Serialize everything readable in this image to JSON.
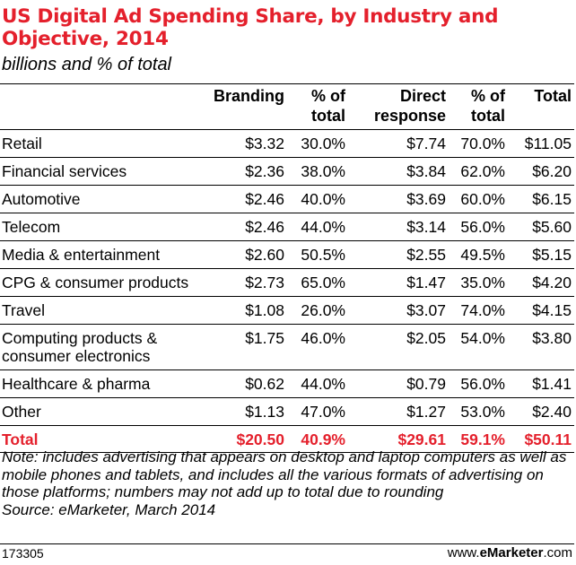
{
  "title": "US Digital Ad Spending Share, by Industry and Objective, 2014",
  "subtitle": "billions and % of total",
  "colors": {
    "accent": "#e4202c",
    "text": "#000000"
  },
  "chart_data": {
    "type": "table",
    "columns": [
      "",
      "Branding",
      "% of total",
      "Direct response",
      "% of total",
      "Total"
    ],
    "rows": [
      {
        "label": "Retail",
        "branding": "$3.32",
        "branding_pct": "30.0%",
        "direct": "$7.74",
        "direct_pct": "70.0%",
        "total": "$11.05"
      },
      {
        "label": "Financial services",
        "branding": "$2.36",
        "branding_pct": "38.0%",
        "direct": "$3.84",
        "direct_pct": "62.0%",
        "total": "$6.20"
      },
      {
        "label": "Automotive",
        "branding": "$2.46",
        "branding_pct": "40.0%",
        "direct": "$3.69",
        "direct_pct": "60.0%",
        "total": "$6.15"
      },
      {
        "label": "Telecom",
        "branding": "$2.46",
        "branding_pct": "44.0%",
        "direct": "$3.14",
        "direct_pct": "56.0%",
        "total": "$5.60"
      },
      {
        "label": "Media & entertainment",
        "branding": "$2.60",
        "branding_pct": "50.5%",
        "direct": "$2.55",
        "direct_pct": "49.5%",
        "total": "$5.15"
      },
      {
        "label": "CPG & consumer products",
        "branding": "$2.73",
        "branding_pct": "65.0%",
        "direct": "$1.47",
        "direct_pct": "35.0%",
        "total": "$4.20"
      },
      {
        "label": "Travel",
        "branding": "$1.08",
        "branding_pct": "26.0%",
        "direct": "$3.07",
        "direct_pct": "74.0%",
        "total": "$4.15"
      },
      {
        "label": "Computing products & consumer electronics",
        "label_line1": "Computing products &",
        "label_line2": "consumer electronics",
        "branding": "$1.75",
        "branding_pct": "46.0%",
        "direct": "$2.05",
        "direct_pct": "54.0%",
        "total": "$3.80"
      },
      {
        "label": "Healthcare & pharma",
        "branding": "$0.62",
        "branding_pct": "44.0%",
        "direct": "$0.79",
        "direct_pct": "56.0%",
        "total": "$1.41"
      },
      {
        "label": "Other",
        "branding": "$1.13",
        "branding_pct": "47.0%",
        "direct": "$1.27",
        "direct_pct": "53.0%",
        "total": "$2.40"
      }
    ],
    "total_row": {
      "label": "Total",
      "branding": "$20.50",
      "branding_pct": "40.9%",
      "direct": "$29.61",
      "direct_pct": "59.1%",
      "total": "$50.11"
    }
  },
  "headers": {
    "branding": "Branding",
    "pct1_line1": "% of",
    "pct1_line2": "total",
    "direct_line1": "Direct",
    "direct_line2": "response",
    "pct2_line1": "% of",
    "pct2_line2": "total",
    "total": "Total"
  },
  "note": "Note: includes advertising that appears on desktop and laptop computers as well as mobile phones and tablets, and includes all the various formats of advertising on those platforms; numbers may not add up to total due to rounding",
  "source": "Source: eMarketer, March 2014",
  "footer": {
    "id": "173305",
    "site_prefix": "www.",
    "site_brand": "eMarketer",
    "site_suffix": ".com"
  }
}
